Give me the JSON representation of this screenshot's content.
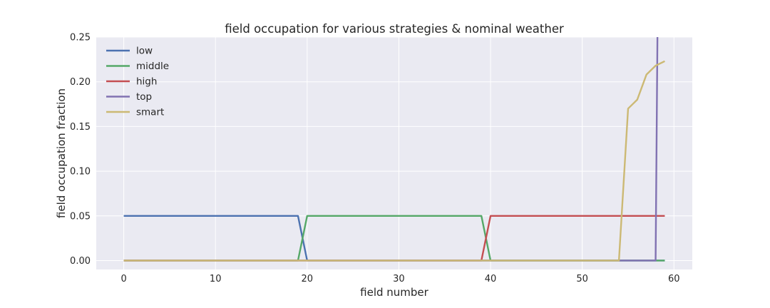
{
  "chart_data": {
    "type": "line",
    "title": "field occupation for various strategies & nominal weather",
    "xlabel": "field number",
    "ylabel": "field occupation fraction",
    "xlim": [
      -3,
      62
    ],
    "ylim": [
      -0.01,
      0.25
    ],
    "xticks": [
      0,
      10,
      20,
      30,
      40,
      50,
      60
    ],
    "yticks": [
      0.0,
      0.05,
      0.1,
      0.15,
      0.2,
      0.25
    ],
    "xtick_labels": [
      "0",
      "10",
      "20",
      "30",
      "40",
      "50",
      "60"
    ],
    "ytick_labels": [
      "0.00",
      "0.05",
      "0.10",
      "0.15",
      "0.20",
      "0.25"
    ],
    "grid": true,
    "legend_position": "top-left",
    "style": {
      "background": "#eaeaf2",
      "grid_color": "#ffffff"
    },
    "series": [
      {
        "name": "low",
        "color": "#4c72b0",
        "points": [
          [
            0,
            0.05
          ],
          [
            19,
            0.05
          ],
          [
            20,
            0.0
          ],
          [
            59,
            0.0
          ]
        ]
      },
      {
        "name": "middle",
        "color": "#55a868",
        "points": [
          [
            0,
            0.0
          ],
          [
            19,
            0.0
          ],
          [
            20,
            0.05
          ],
          [
            39,
            0.05
          ],
          [
            40,
            0.0
          ],
          [
            59,
            0.0
          ]
        ]
      },
      {
        "name": "high",
        "color": "#c44e52",
        "points": [
          [
            0,
            0.0
          ],
          [
            39,
            0.0
          ],
          [
            40,
            0.05
          ],
          [
            59,
            0.05
          ]
        ]
      },
      {
        "name": "top",
        "color": "#8172b2",
        "points": [
          [
            0,
            0.0
          ],
          [
            58,
            0.0
          ],
          [
            58.2,
            0.25
          ]
        ]
      },
      {
        "name": "smart",
        "color": "#ccb974",
        "points": [
          [
            0,
            0.0
          ],
          [
            54,
            0.0
          ],
          [
            55,
            0.17
          ],
          [
            56,
            0.18
          ],
          [
            57,
            0.208
          ],
          [
            58,
            0.218
          ],
          [
            59,
            0.223
          ]
        ]
      }
    ]
  }
}
